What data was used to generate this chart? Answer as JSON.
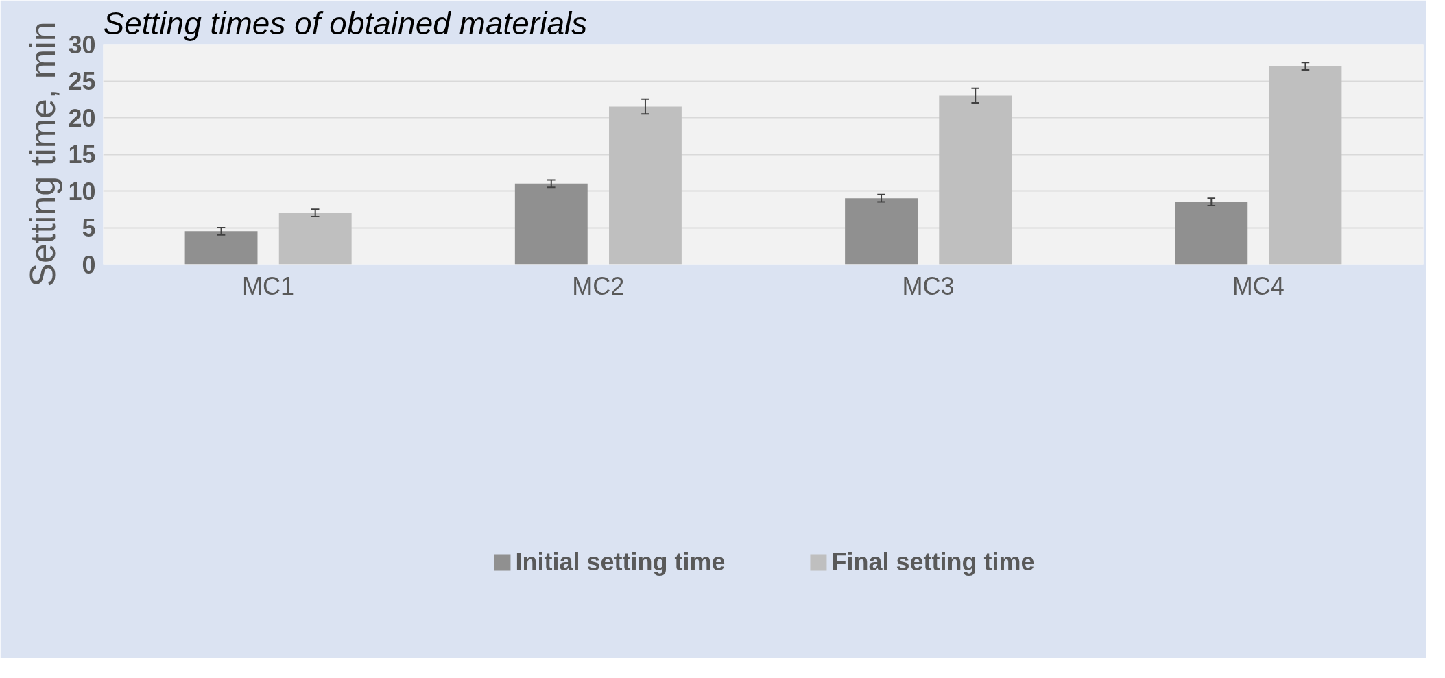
{
  "chart_data": {
    "type": "bar",
    "title": "Setting times of obtained materials",
    "ylabel": "Setting time, min",
    "categories": [
      "MC1",
      "MC2",
      "MC3",
      "MC4"
    ],
    "series": [
      {
        "name": "Initial setting time",
        "color": "#909090",
        "values": [
          4.5,
          11,
          9,
          8.5
        ],
        "errors": [
          0.5,
          0.5,
          0.5,
          0.5
        ]
      },
      {
        "name": "Final setting time",
        "color": "#bfbfbf",
        "values": [
          7,
          21.5,
          23,
          27
        ],
        "errors": [
          0.5,
          1,
          1,
          0.5
        ]
      }
    ],
    "ylim": [
      0,
      30
    ],
    "yticks": [
      0,
      5,
      10,
      15,
      20,
      25,
      30
    ],
    "grid": "y",
    "legend": "bottom"
  }
}
